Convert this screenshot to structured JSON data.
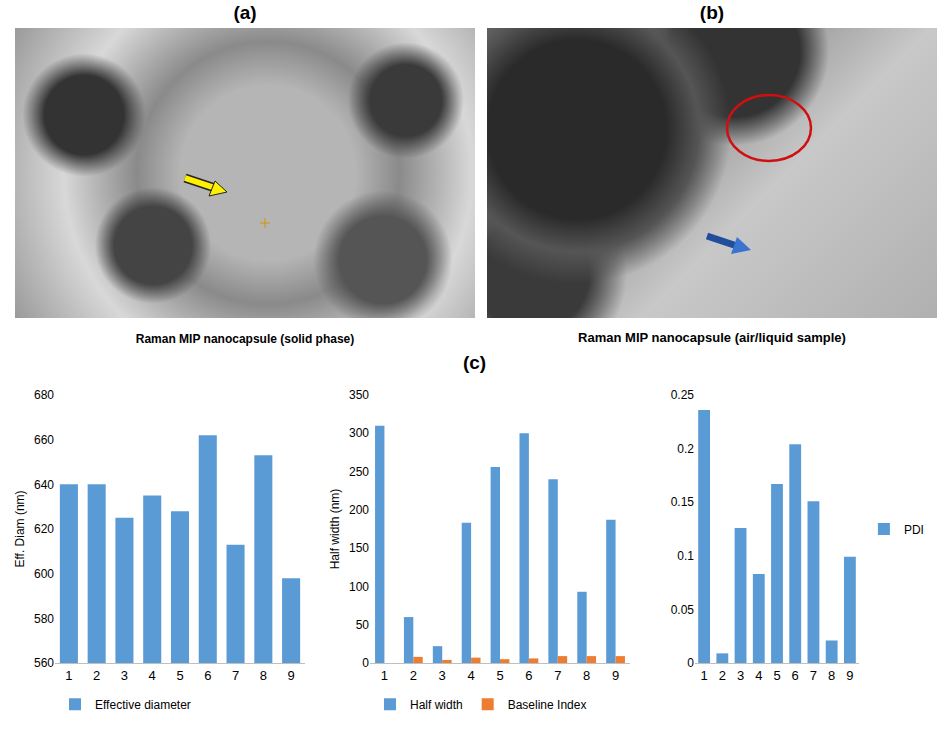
{
  "figure": {
    "panel_labels": [
      "(a)",
      "(b)",
      "(c)"
    ],
    "captions": [
      "Raman MIP nanocapsule (solid phase)",
      "Raman MIP nanocapsule (air/liquid sample)"
    ]
  },
  "chart_data": [
    {
      "type": "bar",
      "y_label": "Eff. Diam (nm)",
      "categories": [
        "1",
        "2",
        "3",
        "4",
        "5",
        "6",
        "7",
        "8",
        "9"
      ],
      "series": [
        {
          "name": "Effective diameter",
          "color": "#5b9bd5",
          "values": [
            640,
            640,
            625,
            635,
            628,
            662,
            613,
            653,
            598
          ]
        }
      ],
      "ylim": [
        560,
        680
      ],
      "yticks": [
        560,
        580,
        600,
        620,
        640,
        660,
        680
      ],
      "grid": false,
      "legend": "bottom"
    },
    {
      "type": "bar",
      "y_label": "Half width (nm)",
      "categories": [
        "1",
        "2",
        "3",
        "4",
        "5",
        "6",
        "7",
        "8",
        "9"
      ],
      "series": [
        {
          "name": "Half width",
          "color": "#5b9bd5",
          "values": [
            310,
            60,
            22,
            183,
            256,
            300,
            240,
            93,
            187
          ]
        },
        {
          "name": "Baseline Index",
          "color": "#ed7d31",
          "values": [
            0,
            8,
            4,
            7,
            5,
            6,
            9,
            9,
            9
          ]
        }
      ],
      "ylim": [
        0,
        350
      ],
      "yticks": [
        0,
        50,
        100,
        150,
        200,
        250,
        300,
        350
      ],
      "grid": false,
      "legend": "bottom"
    },
    {
      "type": "bar",
      "categories": [
        "1",
        "2",
        "3",
        "4",
        "5",
        "6",
        "7",
        "8",
        "9"
      ],
      "series": [
        {
          "name": "PDI",
          "color": "#5b9bd5",
          "values": [
            0.236,
            0.009,
            0.126,
            0.083,
            0.167,
            0.204,
            0.151,
            0.021,
            0.099
          ]
        }
      ],
      "ylim": [
        0,
        0.25
      ],
      "yticks": [
        0,
        0.05,
        0.1,
        0.15,
        0.2,
        0.25
      ],
      "grid": false,
      "legend": "right"
    }
  ]
}
